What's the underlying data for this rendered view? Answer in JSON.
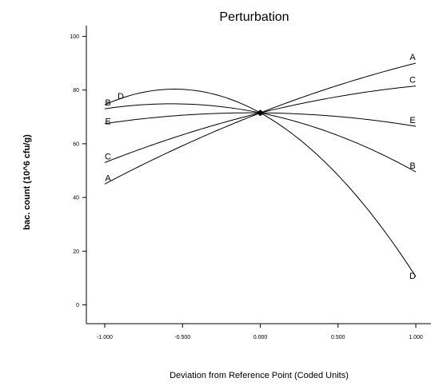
{
  "chart_data": {
    "type": "line",
    "title": "Perturbation",
    "xlabel": "Deviation from Reference Point (Coded Units)",
    "ylabel": "bac. count (10^6 cfu/g)",
    "xlim": [
      -1.0,
      1.0
    ],
    "ylim": [
      -7,
      104
    ],
    "x_ticks": [
      -1.0,
      -0.5,
      0.0,
      0.5,
      1.0
    ],
    "x_tick_labels": [
      "-1.000",
      "-0.500",
      "0.000",
      "0.500",
      "1.000"
    ],
    "y_ticks": [
      0,
      20,
      40,
      60,
      80,
      100
    ],
    "y_tick_labels": [
      "0",
      "20",
      "40",
      "60",
      "80",
      "100"
    ],
    "grid": false,
    "line_color": "#000000",
    "reference_point": {
      "x": 0.0,
      "y": 71.5
    },
    "series": [
      {
        "name": "A",
        "x": [
          -1.0,
          -0.5,
          0.0,
          0.5,
          1.0
        ],
        "y": [
          45.0,
          58.7,
          71.5,
          81.5,
          90.0
        ]
      },
      {
        "name": "B",
        "x": [
          -1.0,
          -0.5,
          0.0,
          0.5,
          1.0
        ],
        "y": [
          73.0,
          75.0,
          71.5,
          62.7,
          49.5
        ]
      },
      {
        "name": "C",
        "x": [
          -1.0,
          -0.5,
          0.0,
          0.5,
          1.0
        ],
        "y": [
          53.0,
          63.0,
          71.5,
          77.2,
          81.5
        ]
      },
      {
        "name": "D",
        "x": [
          -1.0,
          -0.5,
          0.0,
          0.5,
          1.0
        ],
        "y": [
          74.5,
          80.0,
          71.5,
          50.0,
          10.5
        ]
      },
      {
        "name": "E",
        "x": [
          -1.0,
          -0.5,
          0.0,
          0.5,
          1.0
        ],
        "y": [
          67.5,
          70.0,
          71.5,
          70.0,
          66.5
        ]
      }
    ],
    "series_label_positions": [
      {
        "series": "A",
        "end": "both"
      },
      {
        "series": "B",
        "end": "both"
      },
      {
        "series": "C",
        "end": "both"
      },
      {
        "series": "D",
        "end": "both"
      },
      {
        "series": "E",
        "end": "both"
      }
    ]
  }
}
